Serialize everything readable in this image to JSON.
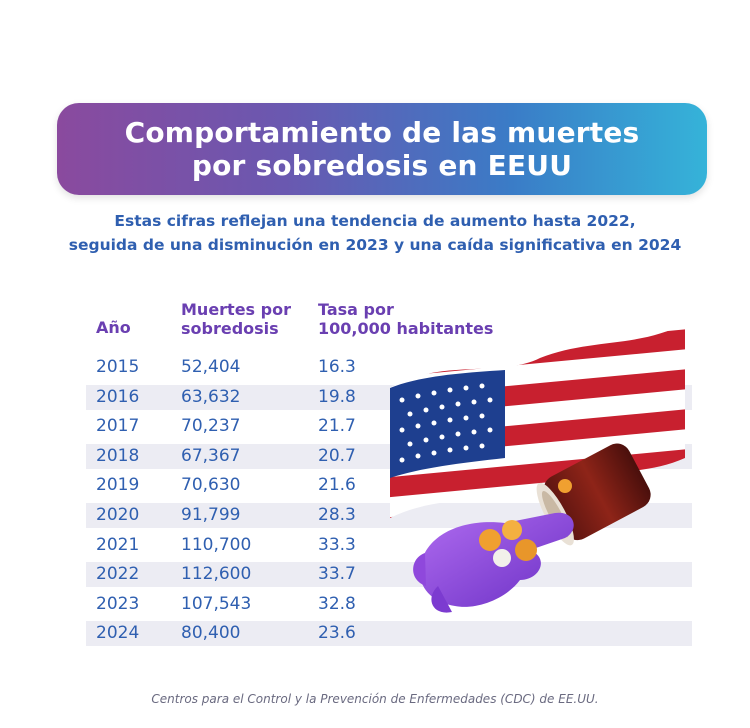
{
  "title": {
    "line1": "Comportamiento de las muertes",
    "line2": "por sobredosis en EEUU"
  },
  "subtitle": {
    "line1": "Estas cifras reflejan una tendencia de aumento hasta 2022,",
    "line2": "seguida de una disminución en 2023 y una caída significativa en 2024"
  },
  "table": {
    "headers": {
      "year": "Año",
      "deaths_line1": "Muertes por",
      "deaths_line2": "sobredosis",
      "rate_line1": "Tasa por",
      "rate_line2": "100,000 habitantes"
    },
    "rows": [
      {
        "year": "2015",
        "deaths": "52,404",
        "rate": "16.3"
      },
      {
        "year": "2016",
        "deaths": "63,632",
        "rate": "19.8"
      },
      {
        "year": "2017",
        "deaths": "70,237",
        "rate": "21.7"
      },
      {
        "year": "2018",
        "deaths": "67,367",
        "rate": "20.7"
      },
      {
        "year": "2019",
        "deaths": "70,630",
        "rate": "21.6"
      },
      {
        "year": "2020",
        "deaths": "91,799",
        "rate": "28.3"
      },
      {
        "year": "2021",
        "deaths": "110,700",
        "rate": "33.3"
      },
      {
        "year": "2022",
        "deaths": "112,600",
        "rate": "33.7"
      },
      {
        "year": "2023",
        "deaths": "107,543",
        "rate": "32.8"
      },
      {
        "year": "2024",
        "deaths": "80,400",
        "rate": "23.6"
      }
    ]
  },
  "chart_data": {
    "type": "table",
    "title": "Comportamiento de las muertes por sobredosis en EEUU",
    "columns": [
      "Año",
      "Muertes por sobredosis",
      "Tasa por 100,000 habitantes"
    ],
    "rows": [
      [
        2015,
        52404,
        16.3
      ],
      [
        2016,
        63632,
        19.8
      ],
      [
        2017,
        70237,
        21.7
      ],
      [
        2018,
        67367,
        20.7
      ],
      [
        2019,
        70630,
        21.6
      ],
      [
        2020,
        91799,
        28.3
      ],
      [
        2021,
        110700,
        33.3
      ],
      [
        2022,
        112600,
        33.7
      ],
      [
        2023,
        107543,
        32.8
      ],
      [
        2024,
        80400,
        23.6
      ]
    ]
  },
  "footer": "Centros para el Control y la Prevención de Enfermedades (CDC) de EE.UU.",
  "colors": {
    "title_gradient": [
      "#8a4a9e",
      "#3a7cc7",
      "#35b3d9"
    ],
    "subtitle": "#2f5fb0",
    "header": "#6a3fb1",
    "cell": "#2f5fb0",
    "band": "#ececf3"
  },
  "illustration": {
    "icons": [
      "us-flag-icon",
      "pill-bottle-icon",
      "gloved-hand-icon",
      "pill-icon"
    ]
  }
}
